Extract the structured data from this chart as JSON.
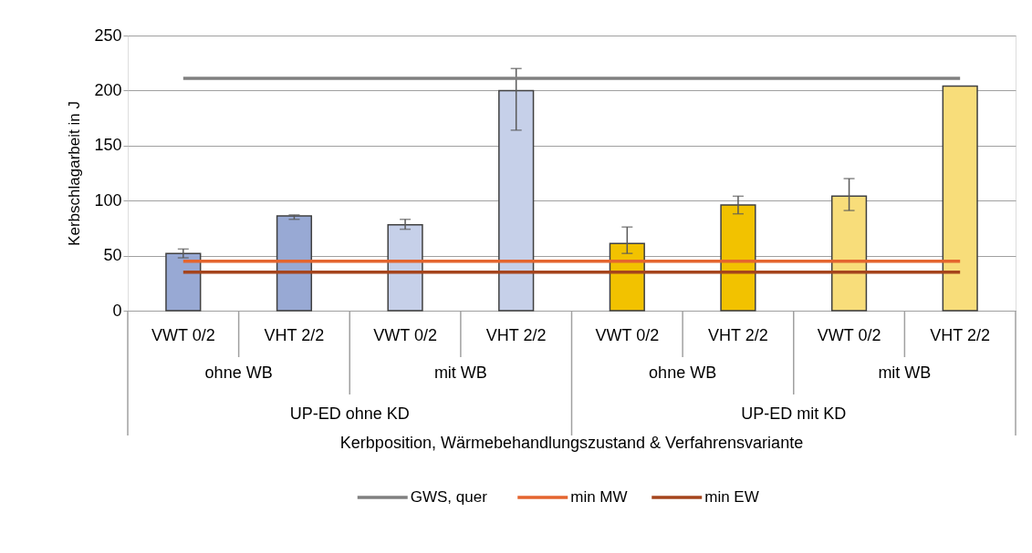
{
  "chart_data": {
    "type": "bar",
    "ylabel": "Kerbschlagarbeit in J",
    "categories": [
      "VWT 0/2",
      "VHT 2/2",
      "VWT 0/2",
      "VHT 2/2",
      "VWT 0/2",
      "VHT 2/2",
      "VWT 0/2",
      "VHT 2/2"
    ],
    "annotations": [
      "ohne WB",
      "mit WB",
      "ohne WB",
      "mit WB",
      "UP-ED ohne KD",
      "UP-ED mit KD",
      "Kerbposition, Wärmebehandlungszustand & Verfahrensvariante"
    ],
    "values": [
      52,
      86,
      78,
      200,
      61,
      96,
      104,
      204
    ],
    "colors": [
      "#98a9d4",
      "#98a9d4",
      "#c6d0e9",
      "#c6d0e9",
      "#f2c200",
      "#f2c200",
      "#f8dd7a",
      "#f8dd7a"
    ],
    "errors": [
      [
        48,
        56
      ],
      [
        83,
        87
      ],
      [
        74,
        83
      ],
      [
        164,
        220
      ],
      [
        52,
        76
      ],
      [
        88,
        104
      ],
      [
        91,
        120
      ],
      null
    ],
    "series": [
      {
        "name": "GWS, quer",
        "type": "line",
        "color": "#808080",
        "values": [
          211,
          211,
          211,
          211,
          211,
          211,
          211,
          211
        ]
      },
      {
        "name": "min MW",
        "type": "line",
        "color": "#e4652e",
        "values": [
          45,
          45,
          45,
          45,
          45,
          45,
          45,
          45
        ]
      },
      {
        "name": "min EW",
        "type": "line",
        "color": "#a5441c",
        "values": [
          35,
          35,
          35,
          35,
          35,
          35,
          35,
          35
        ]
      }
    ],
    "ylim": [
      0,
      250
    ],
    "yticks": [
      0,
      50,
      100,
      150,
      200,
      250
    ],
    "grid": "y",
    "legend": "bottom"
  }
}
